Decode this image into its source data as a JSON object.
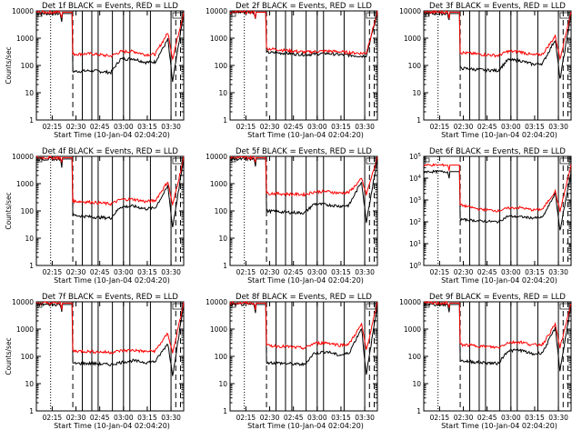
{
  "chart_data": [
    {
      "type": "line",
      "title": "Det 1f BLACK = Events, RED = LLD",
      "xlabel": "Start Time (10-Jan-04 02:04:20)",
      "ylabel": "Counts/sec",
      "y_scale": "log",
      "ylim": [
        1,
        10000
      ],
      "y_tick_style": "decimal",
      "x_ticks": [
        "02:15",
        "02:30",
        "02:45",
        "03:00",
        "03:15",
        "03:30"
      ],
      "series": [
        {
          "name": "Events",
          "color": "#000000",
          "values_approx": [
            8000,
            8000,
            60,
            65,
            55,
            170,
            180,
            130,
            135,
            900,
            25,
            8000
          ]
        },
        {
          "name": "LLD",
          "color": "#ff0000",
          "values_approx": [
            9000,
            9000,
            260,
            270,
            220,
            320,
            330,
            250,
            260,
            1600,
            180,
            9000
          ]
        }
      ]
    },
    {
      "type": "line",
      "title": "Det 2f BLACK = Events, RED = LLD",
      "xlabel": "Start Time (10-Jan-04 02:04:20)",
      "ylabel": "",
      "y_scale": "log",
      "ylim": [
        1,
        10000
      ],
      "y_tick_style": "decimal",
      "x_ticks": [
        "02:15",
        "02:30",
        "02:45",
        "03:00",
        "03:15",
        "03:30"
      ],
      "series": [
        {
          "name": "Events",
          "color": "#000000",
          "values_approx": [
            9000,
            9000,
            300,
            280,
            250,
            260,
            280,
            250,
            240,
            220,
            230,
            8000
          ]
        },
        {
          "name": "LLD",
          "color": "#ff0000",
          "values_approx": [
            9000,
            9000,
            420,
            360,
            310,
            320,
            340,
            320,
            300,
            280,
            290,
            9000
          ]
        }
      ]
    },
    {
      "type": "line",
      "title": "Det 3f BLACK = Events, RED = LLD",
      "xlabel": "Start Time (10-Jan-04 02:04:20)",
      "ylabel": "",
      "y_scale": "log",
      "ylim": [
        1,
        10000
      ],
      "y_tick_style": "decimal",
      "x_ticks": [
        "02:15",
        "02:30",
        "02:45",
        "03:00",
        "03:15",
        "03:30"
      ],
      "series": [
        {
          "name": "Events",
          "color": "#000000",
          "values_approx": [
            8000,
            8000,
            80,
            70,
            65,
            160,
            150,
            110,
            120,
            900,
            30,
            8000
          ]
        },
        {
          "name": "LLD",
          "color": "#ff0000",
          "values_approx": [
            9000,
            9000,
            300,
            260,
            230,
            330,
            320,
            240,
            260,
            1200,
            180,
            9000
          ]
        }
      ]
    },
    {
      "type": "line",
      "title": "Det 4f BLACK = Events, RED = LLD",
      "xlabel": "Start Time (10-Jan-04 02:04:20)",
      "ylabel": "Counts/sec",
      "y_scale": "log",
      "ylim": [
        1,
        10000
      ],
      "y_tick_style": "decimal",
      "x_ticks": [
        "02:15",
        "02:30",
        "02:45",
        "03:00",
        "03:15",
        "03:30"
      ],
      "series": [
        {
          "name": "Events",
          "color": "#000000",
          "values_approx": [
            8000,
            8000,
            70,
            60,
            55,
            140,
            150,
            120,
            130,
            800,
            25,
            8000
          ]
        },
        {
          "name": "LLD",
          "color": "#ff0000",
          "values_approx": [
            9000,
            9000,
            230,
            210,
            180,
            260,
            270,
            220,
            240,
            1200,
            160,
            9000
          ]
        }
      ]
    },
    {
      "type": "line",
      "title": "Det 5f BLACK = Events, RED = LLD",
      "xlabel": "Start Time (10-Jan-04 02:04:20)",
      "ylabel": "",
      "y_scale": "log",
      "ylim": [
        1,
        10000
      ],
      "y_tick_style": "decimal",
      "x_ticks": [
        "02:15",
        "02:30",
        "02:45",
        "03:00",
        "03:15",
        "03:30"
      ],
      "series": [
        {
          "name": "Events",
          "color": "#000000",
          "values_approx": [
            8000,
            8000,
            100,
            90,
            85,
            180,
            170,
            150,
            160,
            1200,
            40,
            8000
          ]
        },
        {
          "name": "LLD",
          "color": "#ff0000",
          "values_approx": [
            9000,
            9000,
            450,
            420,
            400,
            500,
            520,
            450,
            480,
            1500,
            400,
            9000
          ]
        }
      ]
    },
    {
      "type": "line",
      "title": "Det 6f BLACK = Events, RED = LLD",
      "xlabel": "Start Time (10-Jan-04 02:04:20)",
      "ylabel": "",
      "y_scale": "log",
      "ylim": [
        1,
        100000
      ],
      "y_tick_style": "exponent",
      "x_ticks": [
        "02:15",
        "02:30",
        "02:45",
        "03:00",
        "03:15",
        "03:30"
      ],
      "series": [
        {
          "name": "Events",
          "color": "#000000",
          "values_approx": [
            20000,
            20000,
            130,
            110,
            100,
            180,
            170,
            150,
            160,
            2000,
            40,
            20000
          ]
        },
        {
          "name": "LLD",
          "color": "#ff0000",
          "values_approx": [
            40000,
            40000,
            600,
            380,
            320,
            420,
            450,
            350,
            380,
            2500,
            300,
            40000
          ]
        }
      ]
    },
    {
      "type": "line",
      "title": "Det 7f BLACK = Events, RED = LLD",
      "xlabel": "Start Time (10-Jan-04 02:04:20)",
      "ylabel": "Counts/sec",
      "y_scale": "log",
      "ylim": [
        1,
        10000
      ],
      "y_tick_style": "decimal",
      "x_ticks": [
        "02:15",
        "02:30",
        "02:45",
        "03:00",
        "03:15",
        "03:30"
      ],
      "series": [
        {
          "name": "Events",
          "color": "#000000",
          "values_approx": [
            8000,
            8000,
            55,
            55,
            50,
            60,
            70,
            60,
            65,
            300,
            20,
            8000
          ]
        },
        {
          "name": "LLD",
          "color": "#ff0000",
          "values_approx": [
            9000,
            9000,
            160,
            150,
            140,
            160,
            170,
            150,
            160,
            700,
            130,
            9000
          ]
        }
      ]
    },
    {
      "type": "line",
      "title": "Det 8f BLACK = Events, RED = LLD",
      "xlabel": "Start Time (10-Jan-04 02:04:20)",
      "ylabel": "",
      "y_scale": "log",
      "ylim": [
        1,
        10000
      ],
      "y_tick_style": "decimal",
      "x_ticks": [
        "02:15",
        "02:30",
        "02:45",
        "03:00",
        "03:15",
        "03:30"
      ],
      "series": [
        {
          "name": "Events",
          "color": "#000000",
          "values_approx": [
            8000,
            8000,
            60,
            55,
            50,
            130,
            150,
            110,
            130,
            1100,
            20,
            8000
          ]
        },
        {
          "name": "LLD",
          "color": "#ff0000",
          "values_approx": [
            9000,
            9000,
            250,
            230,
            200,
            300,
            320,
            260,
            280,
            1500,
            170,
            9000
          ]
        }
      ]
    },
    {
      "type": "line",
      "title": "Det 9f BLACK = Events, RED = LLD",
      "xlabel": "Start Time (10-Jan-04 02:04:20)",
      "ylabel": "",
      "y_scale": "log",
      "ylim": [
        1,
        10000
      ],
      "y_tick_style": "decimal",
      "x_ticks": [
        "02:15",
        "02:30",
        "02:45",
        "03:00",
        "03:15",
        "03:30"
      ],
      "series": [
        {
          "name": "Events",
          "color": "#000000",
          "values_approx": [
            8000,
            8000,
            70,
            60,
            55,
            160,
            170,
            120,
            140,
            1100,
            30,
            8000
          ]
        },
        {
          "name": "LLD",
          "color": "#ff0000",
          "values_approx": [
            9000,
            9000,
            270,
            240,
            210,
            320,
            340,
            260,
            280,
            1500,
            200,
            9000
          ]
        }
      ]
    }
  ]
}
